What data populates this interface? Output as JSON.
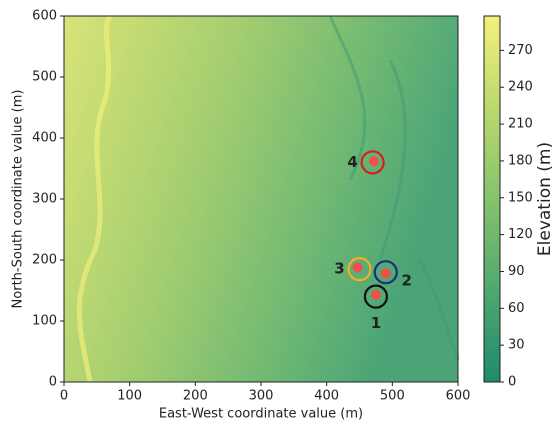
{
  "chart_data": {
    "type": "image",
    "xlabel": "East-West coordinate value (m)",
    "ylabel": "North-South coordinate value (m)",
    "xlim": [
      0,
      600
    ],
    "ylim": [
      0,
      600
    ],
    "xticks": [
      0,
      100,
      200,
      300,
      400,
      500,
      600
    ],
    "yticks": [
      0,
      100,
      200,
      300,
      400,
      500,
      600
    ],
    "points": {
      "x": [
        475,
        490,
        447,
        472
      ],
      "y": [
        143,
        178,
        188,
        362
      ],
      "color": "#f0504a"
    },
    "annotations": [
      {
        "label": "1",
        "x": 475,
        "y": 140,
        "color": "#111111",
        "position": "below"
      },
      {
        "label": "2",
        "x": 490,
        "y": 180,
        "color": "#1f2f7a",
        "position": "right"
      },
      {
        "label": "3",
        "x": 450,
        "y": 185,
        "color": "#f2b01e",
        "position": "left"
      },
      {
        "label": "4",
        "x": 470,
        "y": 360,
        "color": "#d42020",
        "position": "left"
      }
    ],
    "colorbar": {
      "label": "Elevation (m)",
      "lim": [
        0,
        298
      ],
      "ticks": [
        0,
        30,
        60,
        90,
        120,
        150,
        180,
        210,
        240,
        270
      ],
      "colormap": [
        "#1f8a6c",
        "#4fa870",
        "#86c36c",
        "#bcd86e",
        "#f5f07c"
      ]
    }
  }
}
